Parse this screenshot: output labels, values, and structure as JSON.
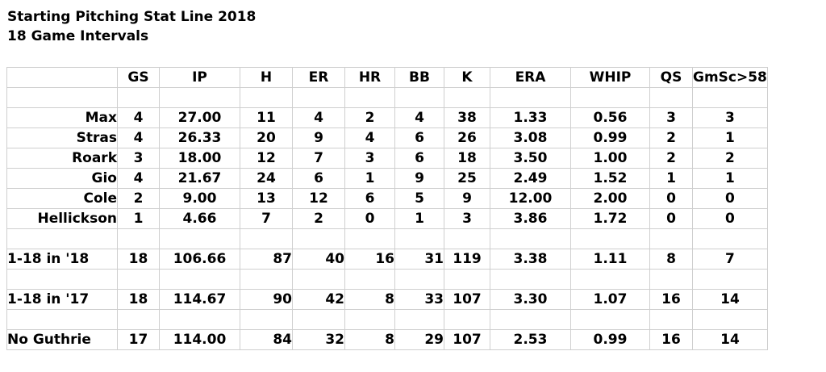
{
  "title": "Starting Pitching Stat Line 2018",
  "subtitle": "18 Game Intervals",
  "columns": [
    "GS",
    "IP",
    "H",
    "ER",
    "HR",
    "BB",
    "K",
    "ERA",
    "WHIP",
    "QS",
    "GmSc>58"
  ],
  "pitchers": [
    {
      "name": "Max",
      "GS": "4",
      "IP": "27.00",
      "H": "11",
      "ER": "4",
      "HR": "2",
      "BB": "4",
      "K": "38",
      "ERA": "1.33",
      "WHIP": "0.56",
      "QS": "3",
      "GmSc": "3"
    },
    {
      "name": "Stras",
      "GS": "4",
      "IP": "26.33",
      "H": "20",
      "ER": "9",
      "HR": "4",
      "BB": "6",
      "K": "26",
      "ERA": "3.08",
      "WHIP": "0.99",
      "QS": "2",
      "GmSc": "1"
    },
    {
      "name": "Roark",
      "GS": "3",
      "IP": "18.00",
      "H": "12",
      "ER": "7",
      "HR": "3",
      "BB": "6",
      "K": "18",
      "ERA": "3.50",
      "WHIP": "1.00",
      "QS": "2",
      "GmSc": "2"
    },
    {
      "name": "Gio",
      "GS": "4",
      "IP": "21.67",
      "H": "24",
      "ER": "6",
      "HR": "1",
      "BB": "9",
      "K": "25",
      "ERA": "2.49",
      "WHIP": "1.52",
      "QS": "1",
      "GmSc": "1"
    },
    {
      "name": "Cole",
      "GS": "2",
      "IP": "9.00",
      "H": "13",
      "ER": "12",
      "HR": "6",
      "BB": "5",
      "K": "9",
      "ERA": "12.00",
      "WHIP": "2.00",
      "QS": "0",
      "GmSc": "0"
    },
    {
      "name": "Hellickson",
      "GS": "1",
      "IP": "4.66",
      "H": "7",
      "ER": "2",
      "HR": "0",
      "BB": "1",
      "K": "3",
      "ERA": "3.86",
      "WHIP": "1.72",
      "QS": "0",
      "GmSc": "0"
    }
  ],
  "summaries": [
    {
      "name": "1-18 in '18",
      "GS": "18",
      "IP": "106.66",
      "H": "87",
      "ER": "40",
      "HR": "16",
      "BB": "31",
      "K": "119",
      "ERA": "3.38",
      "WHIP": "1.11",
      "QS": "8",
      "GmSc": "7"
    },
    {
      "name": "1-18 in '17",
      "GS": "18",
      "IP": "114.67",
      "H": "90",
      "ER": "42",
      "HR": "8",
      "BB": "33",
      "K": "107",
      "ERA": "3.30",
      "WHIP": "1.07",
      "QS": "16",
      "GmSc": "14"
    },
    {
      "name": "No Guthrie",
      "GS": "17",
      "IP": "114.00",
      "H": "84",
      "ER": "32",
      "HR": "8",
      "BB": "29",
      "K": "107",
      "ERA": "2.53",
      "WHIP": "0.99",
      "QS": "16",
      "GmSc": "14"
    }
  ]
}
